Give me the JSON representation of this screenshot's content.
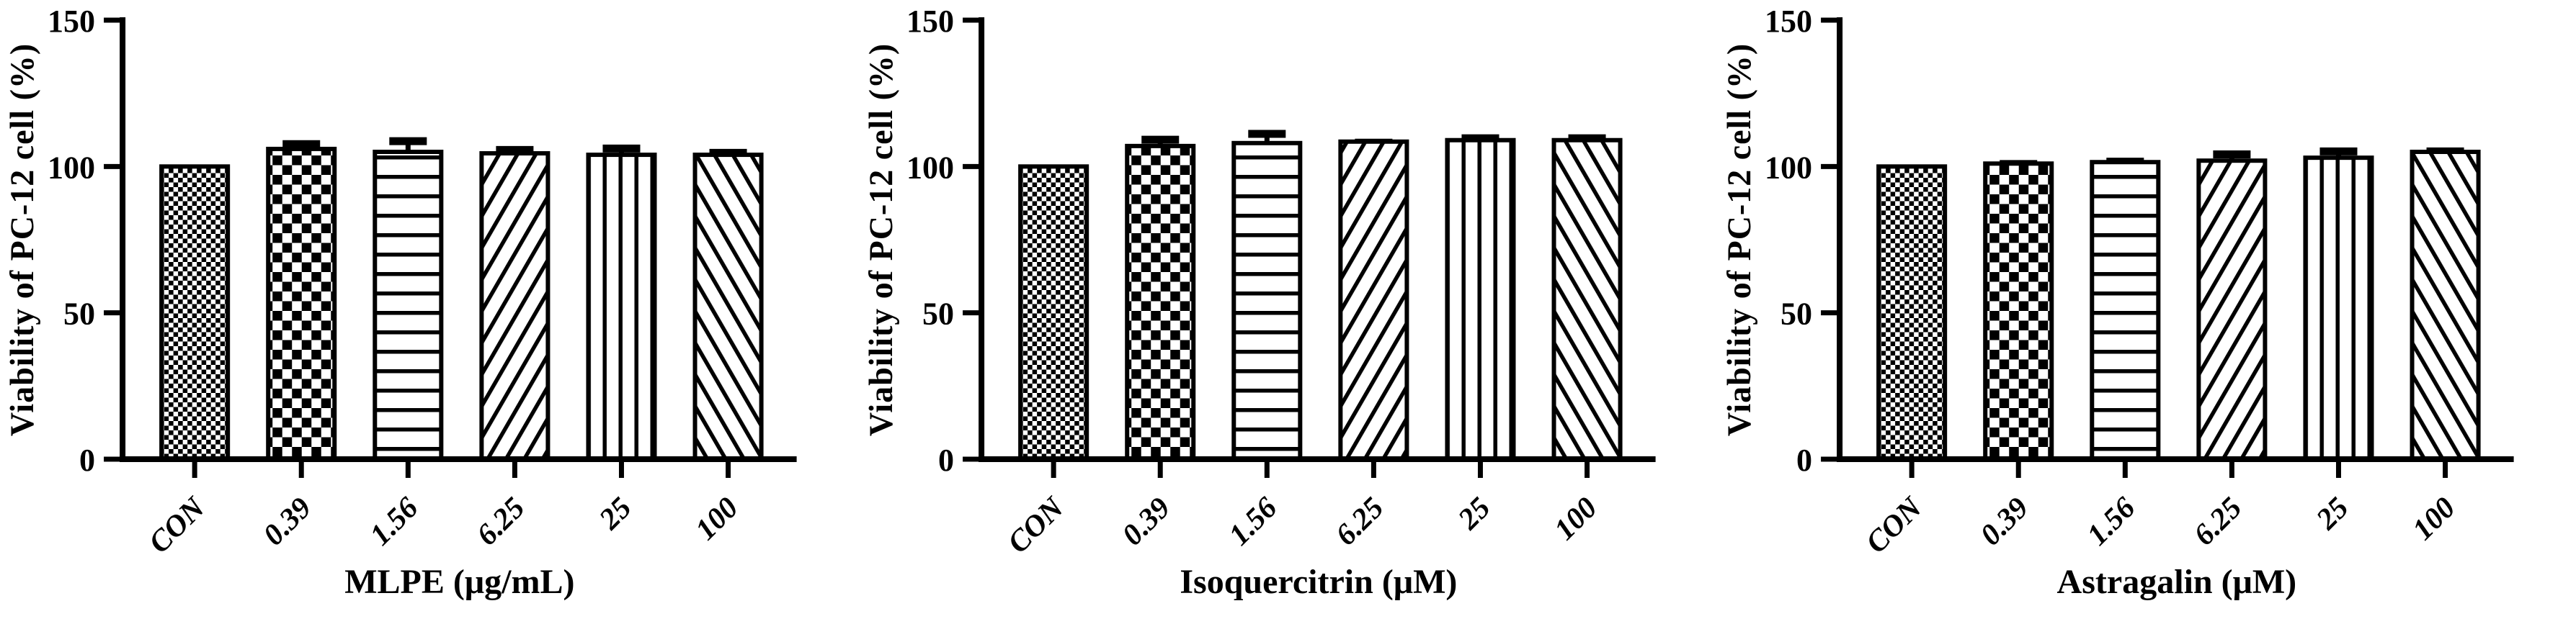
{
  "figure": {
    "background_color": "#ffffff",
    "ink_color": "#000000",
    "shared_y_axis_label": "Viability of PC-12 cell (%)",
    "shared_categories": [
      "CON",
      "0.39",
      "1.56",
      "6.25",
      "25",
      "100"
    ],
    "panel_count": 3
  },
  "chart_data": [
    {
      "type": "bar",
      "title": "",
      "xlabel": "MLPE (μg/mL)",
      "ylabel": "Viability of PC-12 cell (%)",
      "ylim": [
        0,
        150
      ],
      "y_ticks": [
        0,
        50,
        100,
        150
      ],
      "grid": false,
      "legend_position": "none",
      "categories": [
        "CON",
        "0.39",
        "1.56",
        "6.25",
        "25",
        "100"
      ],
      "values": [
        100,
        106,
        105,
        104.5,
        104,
        104
      ],
      "errors_plus": [
        0,
        3,
        5,
        2.5,
        3.5,
        2
      ],
      "bar_fill_patterns": [
        "fine-checker",
        "coarse-checker",
        "horizontal-lines",
        "diagonal-up",
        "vertical-lines",
        "diagonal-down"
      ]
    },
    {
      "type": "bar",
      "title": "",
      "xlabel": "Isoquercitrin (μM)",
      "ylabel": "Viability of PC-12 cell (%)",
      "ylim": [
        0,
        150
      ],
      "y_ticks": [
        0,
        50,
        100,
        150
      ],
      "grid": false,
      "legend_position": "none",
      "categories": [
        "CON",
        "0.39",
        "1.56",
        "6.25",
        "25",
        "100"
      ],
      "values": [
        100,
        107,
        108,
        108.5,
        109,
        109
      ],
      "errors_plus": [
        0,
        3.5,
        4.5,
        1,
        2,
        2
      ],
      "bar_fill_patterns": [
        "fine-checker",
        "coarse-checker",
        "horizontal-lines",
        "diagonal-up",
        "vertical-lines",
        "diagonal-down"
      ]
    },
    {
      "type": "bar",
      "title": "",
      "xlabel": "Astragalin (μM)",
      "ylabel": "Viability of PC-12 cell (%)",
      "ylim": [
        0,
        150
      ],
      "y_ticks": [
        0,
        50,
        100,
        150
      ],
      "grid": false,
      "legend_position": "none",
      "categories": [
        "CON",
        "0.39",
        "1.56",
        "6.25",
        "25",
        "100"
      ],
      "values": [
        100,
        101,
        101.5,
        102,
        103,
        105
      ],
      "errors_plus": [
        0,
        1.2,
        1.5,
        3.5,
        3.5,
        1.5
      ],
      "bar_fill_patterns": [
        "fine-checker",
        "coarse-checker",
        "horizontal-lines",
        "diagonal-up",
        "vertical-lines",
        "diagonal-down"
      ]
    }
  ]
}
